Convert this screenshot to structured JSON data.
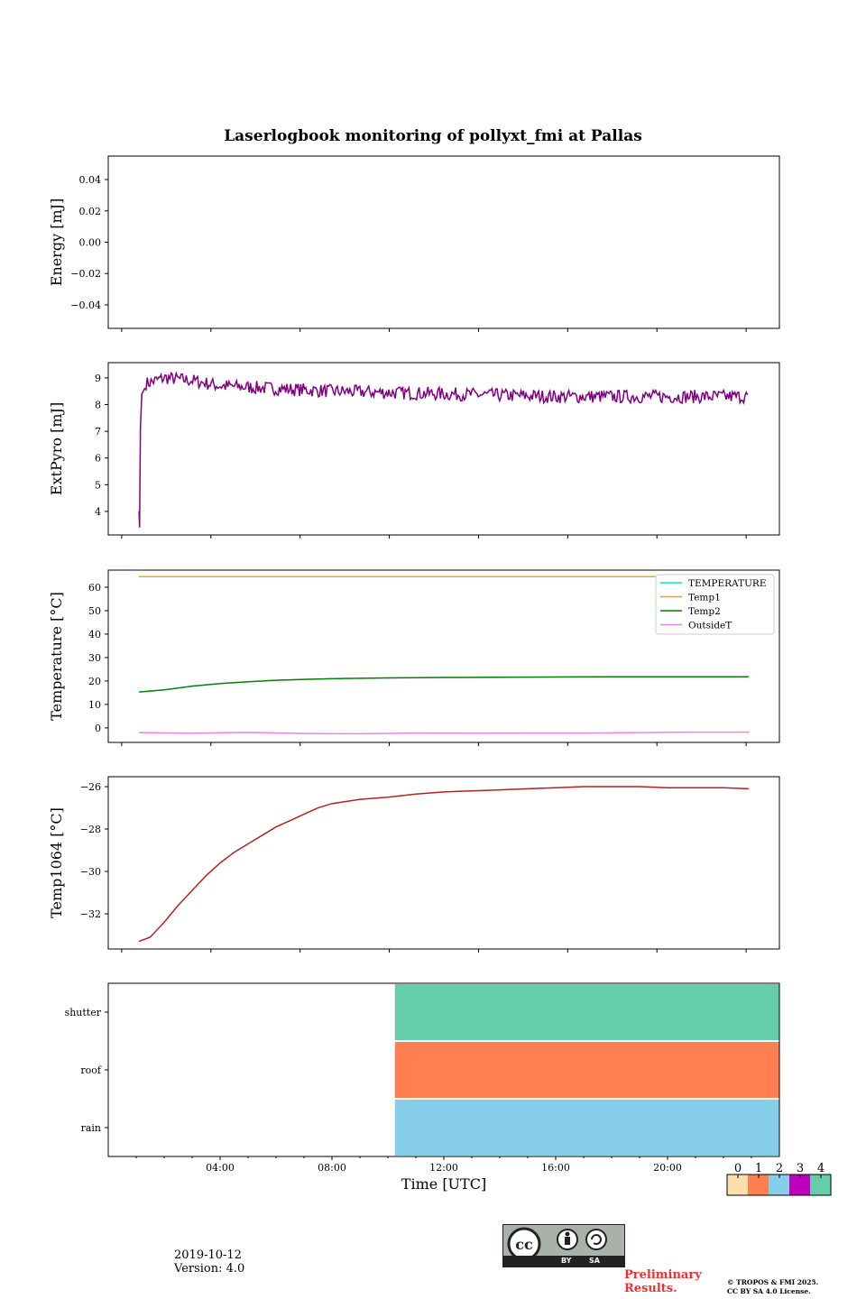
{
  "title": "Laserlogbook monitoring of pollyxt_fmi at Pallas",
  "footer": {
    "date": "2019-10-12",
    "version": "Version: 4.0",
    "preliminary_1": "Preliminary",
    "preliminary_2": "Results.",
    "copyright_1": "© TROPOS & FMI 2025.",
    "copyright_2": "CC BY SA 4.0 License.",
    "cc_by": "BY",
    "cc_sa": "SA"
  },
  "chart_data": [
    {
      "type": "line",
      "ylabel": "Energy [mJ]",
      "ylim": [
        -0.055,
        0.055
      ],
      "yticks": [
        0.04,
        0.02,
        0.0,
        -0.02,
        -0.04
      ],
      "ytick_labels": [
        "0.04",
        "0.02",
        "0.00",
        "−0.02",
        "−0.04"
      ],
      "series": []
    },
    {
      "type": "line",
      "ylabel": "ExtPyro [mJ]",
      "ylim": [
        3.12,
        9.57
      ],
      "yticks": [
        9,
        8,
        7,
        6,
        5,
        4
      ],
      "ytick_labels": [
        "9",
        "8",
        "7",
        "6",
        "5",
        "4"
      ],
      "series": [
        {
          "name": "ExtPyro",
          "color": "#800080",
          "x": [
            1.1,
            1.12,
            1.15,
            1.2,
            1.3
          ],
          "y": [
            4.0,
            3.4,
            7.1,
            8.4,
            8.6
          ],
          "noise_base": [
            [
              1.4,
              8.8
            ],
            [
              2.0,
              9.0
            ],
            [
              3.0,
              8.9
            ],
            [
              4.0,
              8.7
            ],
            [
              6.0,
              8.6
            ],
            [
              8.0,
              8.5
            ],
            [
              12.0,
              8.4
            ],
            [
              16.0,
              8.3
            ],
            [
              20.0,
              8.3
            ],
            [
              22.9,
              8.3
            ]
          ],
          "noise_amp": 0.25
        }
      ]
    },
    {
      "type": "line",
      "ylabel": "Temperature [°C]",
      "ylim": [
        -6.2,
        67.3
      ],
      "yticks": [
        60,
        50,
        40,
        30,
        20,
        10,
        0
      ],
      "ytick_labels": [
        "60",
        "50",
        "40",
        "30",
        "20",
        "10",
        "0"
      ],
      "legend_position": "top-right",
      "series": [
        {
          "name": "TEMPERATURE",
          "color": "#00e5ee",
          "x": [],
          "y": []
        },
        {
          "name": "Temp1",
          "color": "#ffa500",
          "x": [
            1.1,
            22.9
          ],
          "y": [
            64.5,
            64.5
          ]
        },
        {
          "name": "Temp2",
          "color": "#008000",
          "x": [
            1.1,
            2,
            3,
            4,
            5,
            6,
            7,
            8,
            10,
            12,
            14,
            16,
            18,
            20,
            22.9
          ],
          "y": [
            15.3,
            16.2,
            17.8,
            18.9,
            19.7,
            20.3,
            20.7,
            21.0,
            21.3,
            21.5,
            21.6,
            21.7,
            21.8,
            21.8,
            21.8
          ]
        },
        {
          "name": "OutsideT",
          "color": "#ee82ee",
          "x": [
            1.1,
            3,
            5,
            7,
            9,
            11,
            13,
            15,
            17,
            19,
            21,
            22.9
          ],
          "y": [
            -2.0,
            -2.3,
            -1.9,
            -2.4,
            -2.5,
            -2.2,
            -2.3,
            -2.2,
            -2.2,
            -2.0,
            -1.8,
            -1.8
          ]
        }
      ]
    },
    {
      "type": "line",
      "ylabel": "Temp1064 [°C]",
      "ylim": [
        -33.66,
        -25.53
      ],
      "yticks": [
        -26,
        -28,
        -30,
        -32
      ],
      "ytick_labels": [
        "−26",
        "−28",
        "−30",
        "−32"
      ],
      "series": [
        {
          "name": "Temp1064",
          "color": "#b22222",
          "x": [
            1.1,
            1.5,
            2,
            2.5,
            3,
            3.5,
            4,
            4.5,
            5,
            5.5,
            6,
            6.5,
            7,
            7.5,
            8,
            9,
            10,
            11,
            12,
            13,
            14,
            15,
            16,
            17,
            18,
            19,
            20,
            21,
            22,
            22.9
          ],
          "y": [
            -33.3,
            -33.1,
            -32.4,
            -31.6,
            -30.9,
            -30.2,
            -29.6,
            -29.1,
            -28.7,
            -28.3,
            -27.9,
            -27.6,
            -27.3,
            -27.0,
            -26.8,
            -26.6,
            -26.5,
            -26.35,
            -26.25,
            -26.2,
            -26.15,
            -26.1,
            -26.05,
            -26.0,
            -26.0,
            -26.0,
            -26.05,
            -26.05,
            -26.05,
            -26.1
          ]
        }
      ]
    },
    {
      "type": "heatmap",
      "xlabel": "Time [UTC]",
      "xlim": [
        0,
        24
      ],
      "xticks": [
        4,
        8,
        12,
        16,
        20
      ],
      "xtick_labels": [
        "04:00",
        "08:00",
        "12:00",
        "16:00",
        "20:00"
      ],
      "rows": [
        "rain",
        "roof",
        "shutter"
      ],
      "blocks": [
        {
          "row": "shutter",
          "start": 10.25,
          "end": 24,
          "value": 4
        },
        {
          "row": "roof",
          "start": 10.25,
          "end": 24,
          "value": 1
        },
        {
          "row": "rain",
          "start": 10.25,
          "end": 24,
          "value": 2
        }
      ],
      "colorbar": {
        "ticks": [
          "0",
          "1",
          "2",
          "3",
          "4"
        ],
        "colors": [
          "#ffdead",
          "#ff7f50",
          "#87ceeb",
          "#bf00bf",
          "#66cdaa"
        ]
      }
    }
  ]
}
